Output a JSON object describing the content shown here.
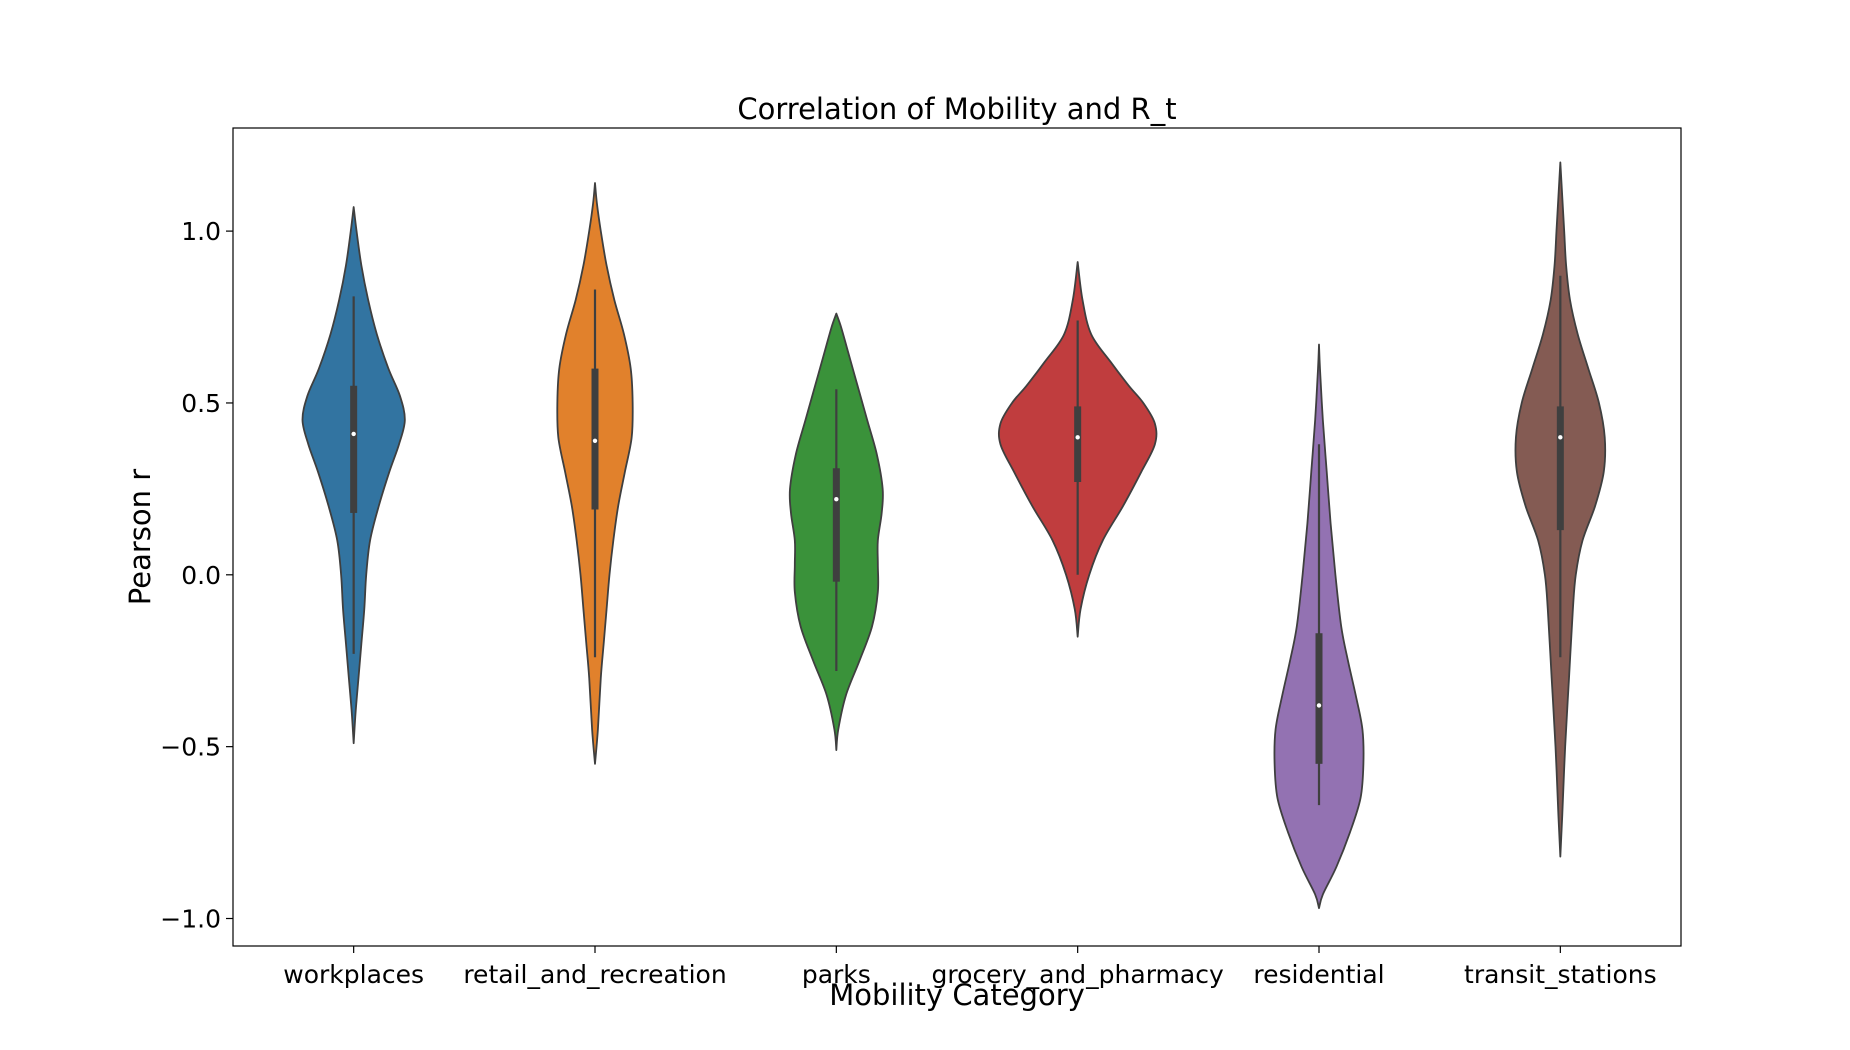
{
  "chart_data": {
    "type": "violin",
    "title": "Correlation of Mobility and R_t",
    "xlabel": "Mobility Category",
    "ylabel": "Pearson r",
    "ylim": [
      -1.08,
      1.3
    ],
    "yticks": [
      1.0,
      0.5,
      0.0,
      -0.5,
      -1.0
    ],
    "ytick_labels": [
      "1.0",
      "0.5",
      "0.0",
      "−0.5",
      "−1.0"
    ],
    "grid": false,
    "categories": [
      "workplaces",
      "retail_and_recreation",
      "parks",
      "grocery_and_pharmacy",
      "residential",
      "transit_stations"
    ],
    "series": [
      {
        "category": "workplaces",
        "color": "#3274a1",
        "median": 0.41,
        "q1": 0.18,
        "q3": 0.55,
        "whisker_low": -0.23,
        "whisker_high": 0.81,
        "density": [
          [
            -0.49,
            0.0
          ],
          [
            -0.4,
            0.02
          ],
          [
            -0.3,
            0.05
          ],
          [
            -0.2,
            0.08
          ],
          [
            -0.1,
            0.11
          ],
          [
            0.0,
            0.13
          ],
          [
            0.1,
            0.17
          ],
          [
            0.2,
            0.26
          ],
          [
            0.3,
            0.37
          ],
          [
            0.38,
            0.47
          ],
          [
            0.45,
            0.53
          ],
          [
            0.52,
            0.48
          ],
          [
            0.6,
            0.36
          ],
          [
            0.7,
            0.24
          ],
          [
            0.8,
            0.15
          ],
          [
            0.9,
            0.08
          ],
          [
            1.0,
            0.03
          ],
          [
            1.07,
            0.0
          ]
        ]
      },
      {
        "category": "retail_and_recreation",
        "color": "#e1812c",
        "median": 0.39,
        "q1": 0.19,
        "q3": 0.6,
        "whisker_low": -0.24,
        "whisker_high": 0.83,
        "density": [
          [
            -0.55,
            0.0
          ],
          [
            -0.45,
            0.03
          ],
          [
            -0.3,
            0.06
          ],
          [
            -0.2,
            0.09
          ],
          [
            -0.1,
            0.12
          ],
          [
            0.0,
            0.15
          ],
          [
            0.1,
            0.19
          ],
          [
            0.2,
            0.24
          ],
          [
            0.3,
            0.31
          ],
          [
            0.4,
            0.38
          ],
          [
            0.5,
            0.39
          ],
          [
            0.6,
            0.37
          ],
          [
            0.7,
            0.3
          ],
          [
            0.8,
            0.2
          ],
          [
            0.9,
            0.12
          ],
          [
            1.0,
            0.06
          ],
          [
            1.08,
            0.02
          ],
          [
            1.14,
            0.0
          ]
        ]
      },
      {
        "category": "parks",
        "color": "#3a923a",
        "median": 0.22,
        "q1": -0.02,
        "q3": 0.31,
        "whisker_low": -0.28,
        "whisker_high": 0.54,
        "density": [
          [
            -0.51,
            0.0
          ],
          [
            -0.45,
            0.02
          ],
          [
            -0.35,
            0.1
          ],
          [
            -0.25,
            0.24
          ],
          [
            -0.15,
            0.37
          ],
          [
            -0.05,
            0.43
          ],
          [
            0.03,
            0.43
          ],
          [
            0.1,
            0.43
          ],
          [
            0.18,
            0.47
          ],
          [
            0.25,
            0.48
          ],
          [
            0.35,
            0.42
          ],
          [
            0.45,
            0.32
          ],
          [
            0.55,
            0.22
          ],
          [
            0.65,
            0.12
          ],
          [
            0.72,
            0.05
          ],
          [
            0.76,
            0.0
          ]
        ]
      },
      {
        "category": "grocery_and_pharmacy",
        "color": "#c03d3e",
        "median": 0.4,
        "q1": 0.27,
        "q3": 0.49,
        "whisker_low": 0.0,
        "whisker_high": 0.74,
        "density": [
          [
            -0.18,
            0.0
          ],
          [
            -0.1,
            0.03
          ],
          [
            0.0,
            0.12
          ],
          [
            0.1,
            0.26
          ],
          [
            0.2,
            0.47
          ],
          [
            0.3,
            0.66
          ],
          [
            0.38,
            0.8
          ],
          [
            0.44,
            0.8
          ],
          [
            0.5,
            0.68
          ],
          [
            0.55,
            0.53
          ],
          [
            0.62,
            0.34
          ],
          [
            0.7,
            0.14
          ],
          [
            0.8,
            0.05
          ],
          [
            0.91,
            0.0
          ]
        ]
      },
      {
        "category": "residential",
        "color": "#9372b2",
        "median": -0.38,
        "q1": -0.55,
        "q3": -0.17,
        "whisker_low": -0.67,
        "whisker_high": 0.38,
        "density": [
          [
            -0.97,
            0.0
          ],
          [
            -0.93,
            0.04
          ],
          [
            -0.85,
            0.18
          ],
          [
            -0.75,
            0.32
          ],
          [
            -0.65,
            0.43
          ],
          [
            -0.55,
            0.46
          ],
          [
            -0.45,
            0.45
          ],
          [
            -0.35,
            0.38
          ],
          [
            -0.25,
            0.3
          ],
          [
            -0.15,
            0.23
          ],
          [
            0.0,
            0.17
          ],
          [
            0.15,
            0.12
          ],
          [
            0.3,
            0.08
          ],
          [
            0.45,
            0.04
          ],
          [
            0.6,
            0.01
          ],
          [
            0.67,
            0.0
          ]
        ]
      },
      {
        "category": "transit_stations",
        "color": "#845b53",
        "median": 0.4,
        "q1": 0.13,
        "q3": 0.49,
        "whisker_low": -0.24,
        "whisker_high": 0.87,
        "density": [
          [
            -0.82,
            0.0
          ],
          [
            -0.7,
            0.02
          ],
          [
            -0.5,
            0.05
          ],
          [
            -0.3,
            0.09
          ],
          [
            -0.1,
            0.13
          ],
          [
            0.0,
            0.16
          ],
          [
            0.1,
            0.23
          ],
          [
            0.2,
            0.36
          ],
          [
            0.3,
            0.45
          ],
          [
            0.4,
            0.46
          ],
          [
            0.5,
            0.4
          ],
          [
            0.6,
            0.29
          ],
          [
            0.7,
            0.18
          ],
          [
            0.8,
            0.1
          ],
          [
            0.9,
            0.06
          ],
          [
            1.0,
            0.04
          ],
          [
            1.1,
            0.02
          ],
          [
            1.2,
            0.0
          ]
        ]
      }
    ]
  }
}
